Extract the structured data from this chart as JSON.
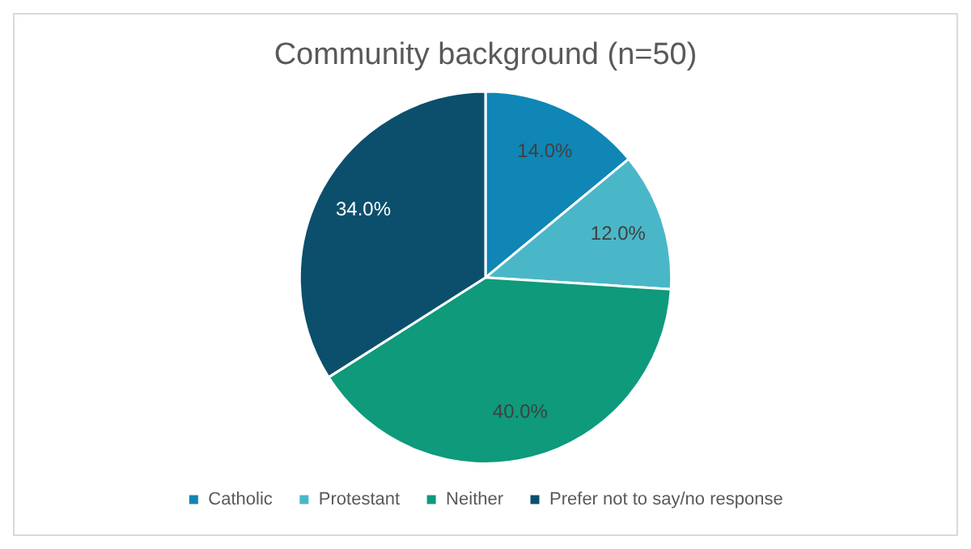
{
  "chart_data": {
    "type": "pie",
    "title": "Community background (n=50)",
    "categories": [
      "Catholic",
      "Protestant",
      "Neither",
      "Prefer not to say/no response"
    ],
    "values": [
      14,
      12,
      40,
      34
    ],
    "value_labels": [
      "14.0%",
      "12.0%",
      "40.0%",
      "34.0%"
    ],
    "colors": [
      "#0f86b6",
      "#4ab7c8",
      "#0e9a7b",
      "#0c4f6c"
    ],
    "legend": "bottom"
  }
}
